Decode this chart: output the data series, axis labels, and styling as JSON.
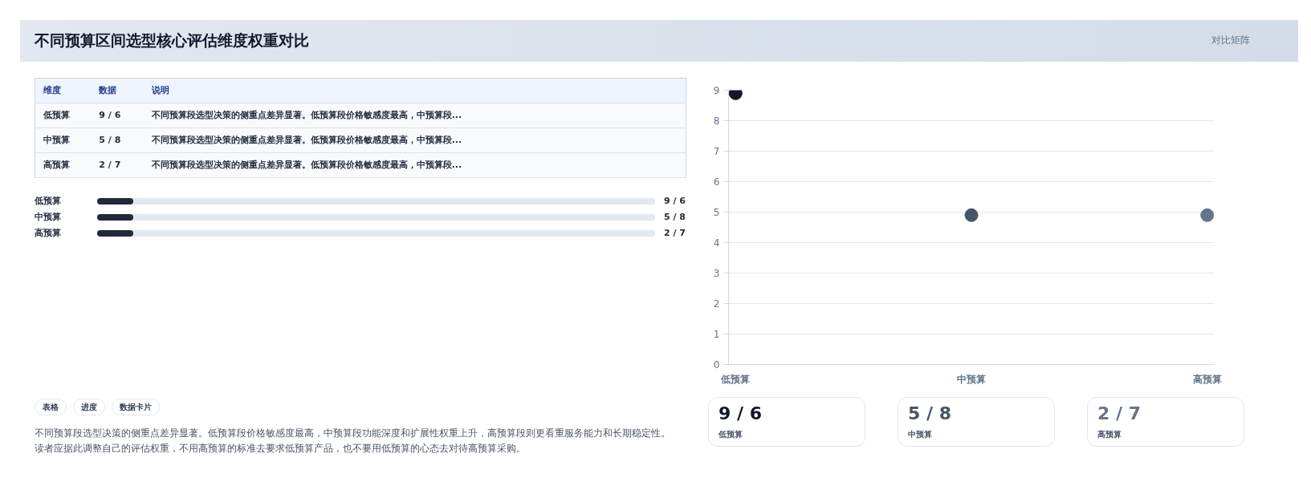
{
  "chart_data": [
    {
      "type": "other",
      "title": "不同预算区间选型核心评估维度权重对比",
      "annotations": [
        "对比矩阵"
      ]
    },
    {
      "type": "other",
      "annotations": [
        "维度",
        "数据",
        "说明",
        "低预算",
        "9 / 6",
        "不同预算段选型决策的侧重点差异显著。低预算段价格敏感度最高，中预算段...",
        "中预算",
        "5 / 8",
        "不同预算段选型决策的侧重点差异显著。低预算段价格敏感度最高，中预算段...",
        "高预算",
        "2 / 7",
        "不同预算段选型决策的侧重点差异显著。低预算段价格敏感度最高，中预算段..."
      ]
    },
    {
      "type": "other",
      "annotations": [
        "低预算",
        "9 / 6",
        "中预算",
        "5 / 8",
        "高预算",
        "2 / 7"
      ]
    },
    {
      "type": "other",
      "annotations": [
        "表格",
        "进度",
        "数据卡片",
        "不同预算段选型决策的侧重点差异显著。低预算段价格敏感度最高，中预算段功能深度和扩展性权重上升，高预算段则更看重服务能力和长期稳定性。读者应据此调整自己的评估权重，不用高预算的标准去要求低预算产品，也不要用低预算的心态去对待高预算采购。"
      ]
    },
    {
      "type": "scatter",
      "categories": [
        "低预算",
        "中预算",
        "高预算"
      ],
      "values": [
        8.9,
        4.9,
        4.9
      ],
      "colors": [
        "#0f172a",
        "#475569",
        "#64748b"
      ],
      "ylim": [
        0,
        9
      ],
      "yticks": [
        0,
        1,
        2,
        3,
        4,
        5,
        6,
        7,
        8,
        9
      ],
      "grid": "y",
      "marker": "circle"
    },
    {
      "type": "other",
      "annotations": [
        "9 / 6",
        "低预算",
        "5 / 8",
        "中预算",
        "2 / 7",
        "高预算"
      ]
    }
  ]
}
